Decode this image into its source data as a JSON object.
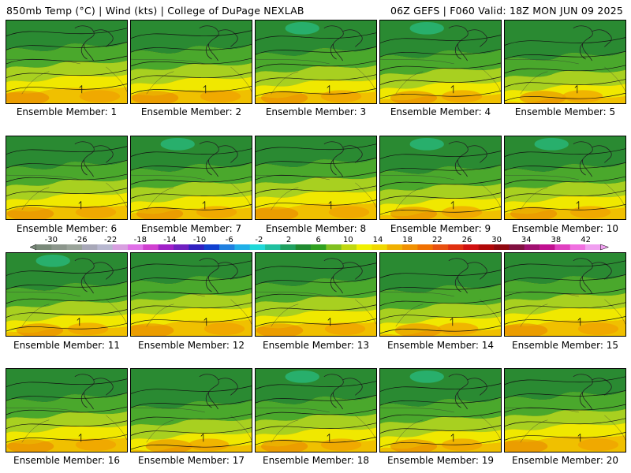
{
  "header": {
    "left": "850mb Temp (°C) | Wind (kts) | College of DuPage NEXLAB",
    "right": "06Z GEFS | F060 Valid: 18Z MON JUN 09 2025"
  },
  "members": [
    {
      "label": "Ensemble Member: 1",
      "variant": 0
    },
    {
      "label": "Ensemble Member: 2",
      "variant": 1
    },
    {
      "label": "Ensemble Member: 3",
      "variant": 2
    },
    {
      "label": "Ensemble Member: 4",
      "variant": 3
    },
    {
      "label": "Ensemble Member: 5",
      "variant": 4
    },
    {
      "label": "Ensemble Member: 6",
      "variant": 1
    },
    {
      "label": "Ensemble Member: 7",
      "variant": 2
    },
    {
      "label": "Ensemble Member: 8",
      "variant": 0
    },
    {
      "label": "Ensemble Member: 9",
      "variant": 3
    },
    {
      "label": "Ensemble Member: 10",
      "variant": 2
    },
    {
      "label": "Ensemble Member: 11",
      "variant": 3
    },
    {
      "label": "Ensemble Member: 12",
      "variant": 0
    },
    {
      "label": "Ensemble Member: 13",
      "variant": 1
    },
    {
      "label": "Ensemble Member: 14",
      "variant": 4
    },
    {
      "label": "Ensemble Member: 15",
      "variant": 0
    },
    {
      "label": "Ensemble Member: 16",
      "variant": 1
    },
    {
      "label": "Ensemble Member: 17",
      "variant": 4
    },
    {
      "label": "Ensemble Member: 18",
      "variant": 2
    },
    {
      "label": "Ensemble Member: 19",
      "variant": 3
    },
    {
      "label": "Ensemble Member: 20",
      "variant": 0
    }
  ],
  "colorbar": {
    "labels": [
      "-30",
      "-26",
      "-22",
      "-18",
      "-14",
      "-10",
      "-6",
      "-2",
      "2",
      "6",
      "10",
      "14",
      "18",
      "22",
      "26",
      "30",
      "34",
      "38",
      "42"
    ],
    "colors": [
      "#7a8a7a",
      "#8c968c",
      "#9aa49a",
      "#a8a8b8",
      "#b8b8d0",
      "#d8a0e0",
      "#e070e8",
      "#d040d0",
      "#a020c8",
      "#7020c0",
      "#3020c0",
      "#1040d0",
      "#2080e0",
      "#20b0e8",
      "#20d8d8",
      "#20c0a0",
      "#20a060",
      "#208a30",
      "#30a020",
      "#80c020",
      "#c0d810",
      "#f0f000",
      "#f0d800",
      "#f0b000",
      "#f09000",
      "#f07000",
      "#e85010",
      "#e03010",
      "#d01010",
      "#b00808",
      "#900810",
      "#801040",
      "#a01070",
      "#c01090",
      "#e040c0",
      "#f070e0",
      "#f0a0f0"
    ]
  },
  "fill_colors": {
    "dark_green": "#2a8a32",
    "green": "#4aa82c",
    "yellow_green": "#a8d020",
    "yellow": "#f0e800",
    "gold": "#f0c000",
    "orange": "#f0a000",
    "dark_orange": "#e88000",
    "teal": "#28b87a"
  }
}
